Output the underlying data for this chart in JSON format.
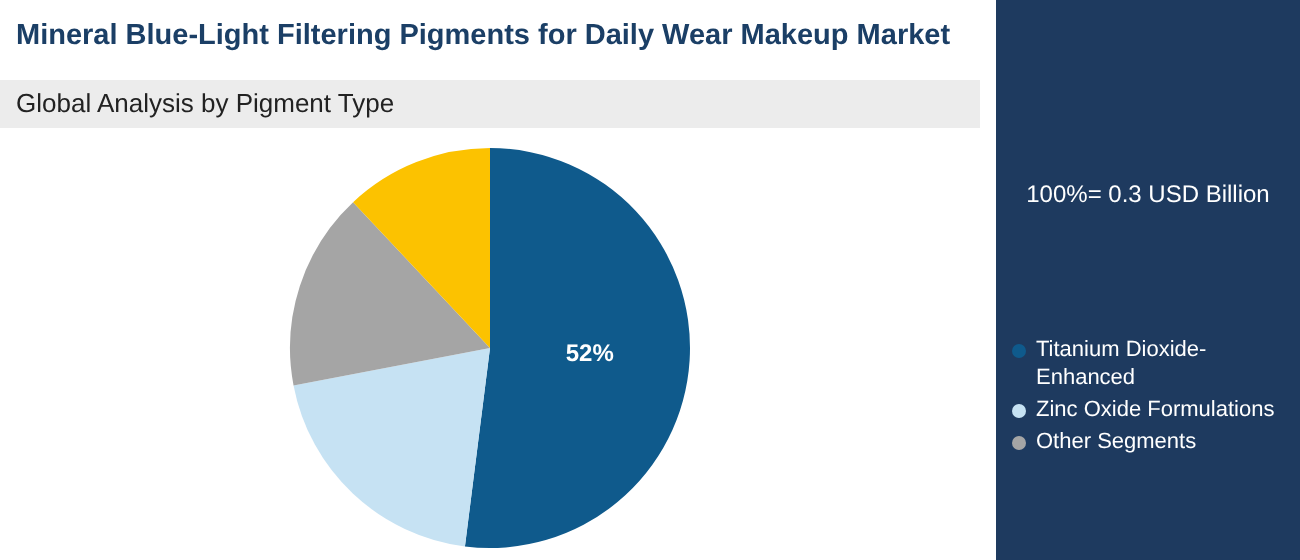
{
  "chart_data": {
    "type": "pie",
    "title": "Mineral Blue-Light Filtering Pigments for Daily Wear Makeup Market",
    "subtitle": "Global Analysis by Pigment Type",
    "categories": [
      "Titanium Dioxide-Enhanced",
      "Zinc Oxide Formulations",
      "Other Segments",
      null
    ],
    "values": [
      52,
      20,
      16,
      12
    ],
    "colors": [
      "#0f5a8c",
      "#c6e2f3",
      "#a5a5a5",
      "#fcc200"
    ],
    "value_labels": [
      "52%",
      null,
      null,
      null
    ],
    "annotations": [
      "100%= 0.3 USD Billion"
    ],
    "legend": "right"
  }
}
